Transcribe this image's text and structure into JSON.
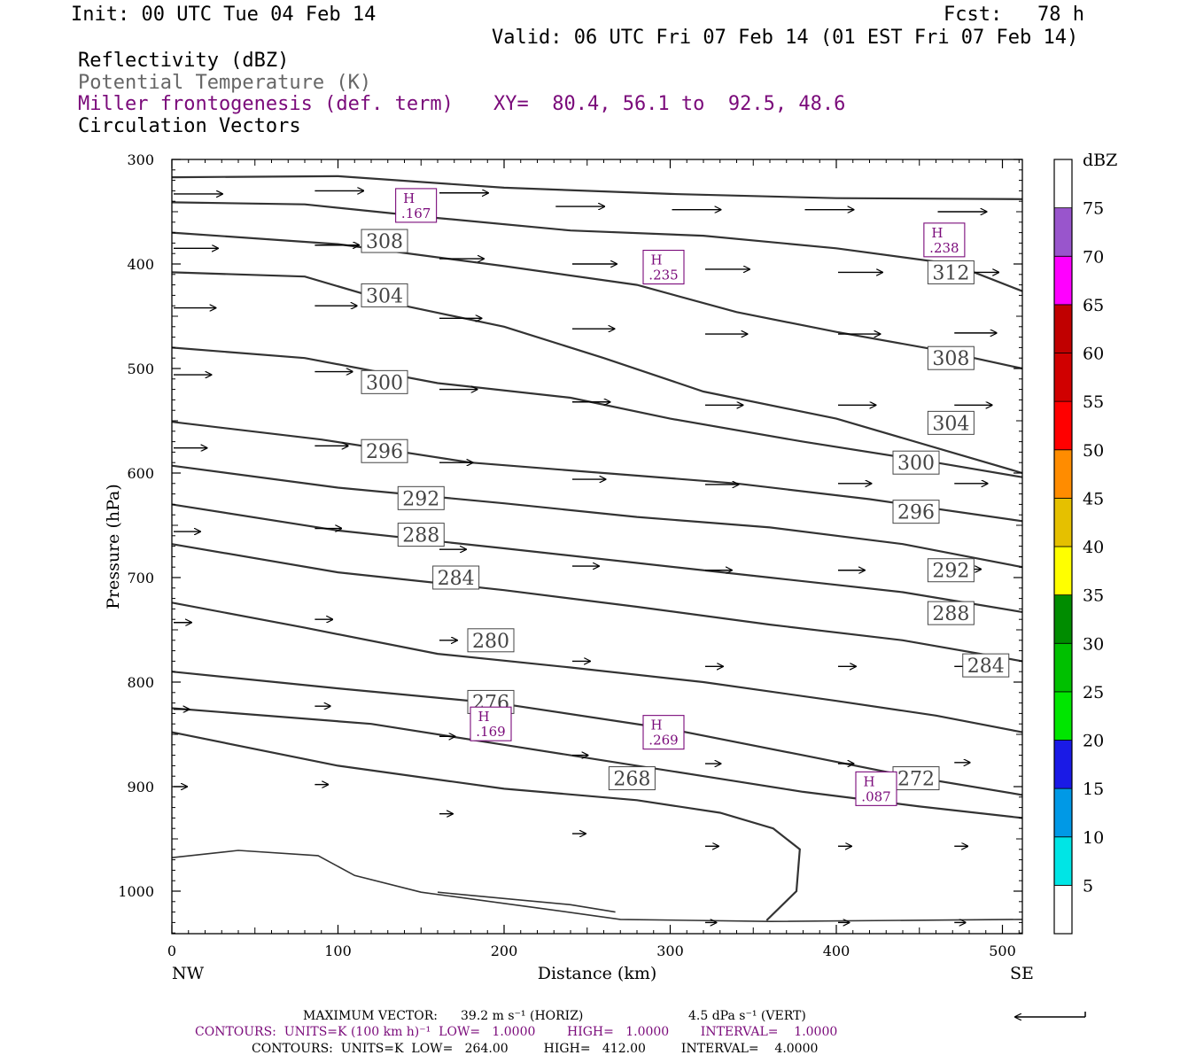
{
  "header": {
    "init": "Init: 00 UTC Tue 04 Feb 14",
    "fcst": "Fcst:   78 h",
    "valid": "Valid: 06 UTC Fri 07 Feb 14 (01 EST Fri 07 Feb 14)",
    "field_reflectivity": "Reflectivity (dBZ)",
    "field_theta": "Potential Temperature (K)",
    "field_miller": "Miller frontogenesis (def. term)",
    "field_vectors": "Circulation Vectors",
    "xy": "XY=  80.4, 56.1 to  92.5, 48.6"
  },
  "footer": {
    "max_vector_label": "MAXIMUM VECTOR:",
    "max_vector_horiz": "39.2 m s⁻¹ (HORIZ)",
    "max_vector_vert": "4.5 dPa s⁻¹ (VERT)",
    "contours_miller": "CONTOURS:  UNITS=K (100 km h)⁻¹  LOW=   1.0000        HIGH=   1.0000        INTERVAL=    1.0000",
    "contours_theta": "CONTOURS:  UNITS=K  LOW=   264.00         HIGH=   412.00         INTERVAL=    4.0000"
  },
  "colors": {
    "contour": "#333333",
    "miller": "#7a0a7a",
    "frame": "#000000"
  },
  "colorbar": {
    "unit": "dBZ",
    "ticks": [
      "5",
      "10",
      "15",
      "20",
      "25",
      "30",
      "35",
      "40",
      "45",
      "50",
      "55",
      "60",
      "65",
      "70",
      "75"
    ],
    "colors": [
      "#00e5e5",
      "#0099e6",
      "#1a1ae6",
      "#00e600",
      "#00c000",
      "#008c00",
      "#ffff00",
      "#e5c000",
      "#ff8c00",
      "#ff0000",
      "#d00000",
      "#c00000",
      "#ff00ff",
      "#9955cc",
      "#ffffff"
    ]
  },
  "chart_data": {
    "type": "cross-section",
    "xlabel": "Distance (km)",
    "ylabel": "Pressure (hPa)",
    "x_ticks": [
      "0",
      "100",
      "200",
      "300",
      "400",
      "500"
    ],
    "y_ticks": [
      "300",
      "400",
      "500",
      "600",
      "700",
      "800",
      "900",
      "1000"
    ],
    "xlim": [
      0,
      512
    ],
    "ylim": [
      1040,
      300
    ],
    "x_end_labels": {
      "left": "NW",
      "right": "SE"
    },
    "theta_contours": [
      {
        "label": "308",
        "points": [
          [
            0,
            317
          ],
          [
            100,
            316
          ],
          [
            200,
            327
          ],
          [
            300,
            333
          ],
          [
            400,
            337
          ],
          [
            512,
            338
          ]
        ]
      },
      {
        "label": "",
        "points": [
          [
            0,
            341
          ],
          [
            80,
            343
          ],
          [
            160,
            356
          ],
          [
            240,
            368
          ],
          [
            320,
            373
          ],
          [
            400,
            385
          ],
          [
            470,
            400
          ],
          [
            512,
            426
          ]
        ]
      },
      {
        "label": "",
        "points": [
          [
            0,
            370
          ],
          [
            100,
            381
          ],
          [
            200,
            402
          ],
          [
            280,
            420
          ],
          [
            340,
            446
          ],
          [
            400,
            465
          ],
          [
            460,
            482
          ],
          [
            512,
            500
          ]
        ]
      },
      {
        "label": "",
        "points": [
          [
            0,
            408
          ],
          [
            80,
            412
          ],
          [
            140,
            440
          ],
          [
            200,
            460
          ],
          [
            260,
            490
          ],
          [
            320,
            522
          ],
          [
            400,
            548
          ],
          [
            512,
            600
          ]
        ]
      },
      {
        "label": "",
        "points": [
          [
            0,
            480
          ],
          [
            80,
            490
          ],
          [
            160,
            514
          ],
          [
            240,
            528
          ],
          [
            300,
            548
          ],
          [
            380,
            570
          ],
          [
            460,
            590
          ],
          [
            512,
            604
          ]
        ]
      },
      {
        "label": "",
        "points": [
          [
            0,
            551
          ],
          [
            90,
            568
          ],
          [
            180,
            590
          ],
          [
            260,
            600
          ],
          [
            340,
            610
          ],
          [
            420,
            625
          ],
          [
            512,
            646
          ]
        ]
      },
      {
        "label": "",
        "points": [
          [
            0,
            593
          ],
          [
            100,
            614
          ],
          [
            200,
            629
          ],
          [
            280,
            642
          ],
          [
            360,
            652
          ],
          [
            440,
            668
          ],
          [
            512,
            690
          ]
        ]
      },
      {
        "label": "",
        "points": [
          [
            0,
            630
          ],
          [
            100,
            655
          ],
          [
            200,
            672
          ],
          [
            280,
            686
          ],
          [
            360,
            700
          ],
          [
            440,
            714
          ],
          [
            512,
            733
          ]
        ]
      },
      {
        "label": "",
        "points": [
          [
            0,
            668
          ],
          [
            100,
            695
          ],
          [
            200,
            712
          ],
          [
            280,
            728
          ],
          [
            360,
            745
          ],
          [
            440,
            760
          ],
          [
            512,
            780
          ]
        ]
      },
      {
        "label": "",
        "points": [
          [
            0,
            724
          ],
          [
            80,
            748
          ],
          [
            160,
            773
          ],
          [
            240,
            786
          ],
          [
            320,
            800
          ],
          [
            400,
            818
          ],
          [
            460,
            832
          ],
          [
            512,
            848
          ]
        ]
      },
      {
        "label": "",
        "points": [
          [
            0,
            790
          ],
          [
            100,
            806
          ],
          [
            200,
            821
          ],
          [
            300,
            845
          ],
          [
            380,
            870
          ],
          [
            440,
            889
          ],
          [
            512,
            908
          ]
        ]
      },
      {
        "label": "",
        "points": [
          [
            0,
            825
          ],
          [
            120,
            840
          ],
          [
            200,
            860
          ],
          [
            280,
            880
          ],
          [
            340,
            895
          ],
          [
            380,
            905
          ],
          [
            450,
            919
          ],
          [
            512,
            930
          ]
        ]
      },
      {
        "label": "",
        "points": [
          [
            0,
            848
          ],
          [
            100,
            880
          ],
          [
            200,
            902
          ],
          [
            280,
            913
          ],
          [
            330,
            925
          ],
          [
            362,
            940
          ],
          [
            378,
            960
          ],
          [
            376,
            1000
          ],
          [
            358,
            1028
          ]
        ]
      }
    ],
    "theta_labels": [
      {
        "text": "308",
        "x": 128,
        "p": 378
      },
      {
        "text": "304",
        "x": 128,
        "p": 430
      },
      {
        "text": "300",
        "x": 128,
        "p": 513
      },
      {
        "text": "296",
        "x": 128,
        "p": 579
      },
      {
        "text": "292",
        "x": 150,
        "p": 624
      },
      {
        "text": "288",
        "x": 150,
        "p": 659
      },
      {
        "text": "284",
        "x": 171,
        "p": 700
      },
      {
        "text": "280",
        "x": 192,
        "p": 760
      },
      {
        "text": "276",
        "x": 192,
        "p": 819
      },
      {
        "text": "268",
        "x": 277,
        "p": 892
      },
      {
        "text": "272",
        "x": 448,
        "p": 892
      },
      {
        "text": "312",
        "x": 469,
        "p": 408
      },
      {
        "text": "308",
        "x": 469,
        "p": 490
      },
      {
        "text": "304",
        "x": 469,
        "p": 552
      },
      {
        "text": "300",
        "x": 448,
        "p": 590
      },
      {
        "text": "296",
        "x": 448,
        "p": 637
      },
      {
        "text": "292",
        "x": 469,
        "p": 693
      },
      {
        "text": "288",
        "x": 469,
        "p": 734
      },
      {
        "text": "284",
        "x": 490,
        "p": 784
      }
    ],
    "miller_highs": [
      {
        "label": "H",
        "value": ".167",
        "x": 147,
        "p": 344
      },
      {
        "label": "H",
        "value": ".235",
        "x": 296,
        "p": 403
      },
      {
        "label": "H",
        "value": ".238",
        "x": 465,
        "p": 377
      },
      {
        "label": "H",
        "value": ".169",
        "x": 192,
        "p": 840
      },
      {
        "label": "H",
        "value": ".269",
        "x": 296,
        "p": 848
      },
      {
        "label": "H",
        "value": ".087",
        "x": 424,
        "p": 902
      }
    ],
    "terrain_lines": [
      [
        [
          0,
          968
        ],
        [
          40,
          961
        ],
        [
          88,
          966
        ],
        [
          110,
          985
        ],
        [
          150,
          1001
        ],
        [
          220,
          1016
        ],
        [
          270,
          1027
        ],
        [
          360,
          1029
        ],
        [
          512,
          1027
        ]
      ],
      [
        [
          160,
          1001
        ],
        [
          200,
          1007
        ],
        [
          240,
          1013
        ],
        [
          267,
          1020
        ]
      ]
    ],
    "vectors": [
      {
        "x": 0,
        "p": 333,
        "u": 44,
        "w": 0
      },
      {
        "x": 85,
        "p": 330,
        "u": 44,
        "w": 0
      },
      {
        "x": 160,
        "p": 332,
        "u": 44,
        "w": 0
      },
      {
        "x": 230,
        "p": 345,
        "u": 44,
        "w": 0
      },
      {
        "x": 300,
        "p": 348,
        "u": 44,
        "w": 0
      },
      {
        "x": 380,
        "p": 348,
        "u": 44,
        "w": 0
      },
      {
        "x": 460,
        "p": 350,
        "u": 44,
        "w": 0
      },
      {
        "x": 0,
        "p": 385,
        "u": 40,
        "w": 0
      },
      {
        "x": 85,
        "p": 382,
        "u": 40,
        "w": 0
      },
      {
        "x": 160,
        "p": 395,
        "u": 40,
        "w": 0
      },
      {
        "x": 240,
        "p": 400,
        "u": 40,
        "w": 0
      },
      {
        "x": 320,
        "p": 405,
        "u": 40,
        "w": 0
      },
      {
        "x": 400,
        "p": 408,
        "u": 40,
        "w": 0
      },
      {
        "x": 470,
        "p": 408,
        "u": 40,
        "w": 0
      },
      {
        "x": 0,
        "p": 442,
        "u": 38,
        "w": 0
      },
      {
        "x": 85,
        "p": 440,
        "u": 38,
        "w": 0
      },
      {
        "x": 160,
        "p": 452,
        "u": 38,
        "w": 0
      },
      {
        "x": 240,
        "p": 462,
        "u": 38,
        "w": 0
      },
      {
        "x": 320,
        "p": 467,
        "u": 38,
        "w": 0
      },
      {
        "x": 400,
        "p": 467,
        "u": 38,
        "w": 0
      },
      {
        "x": 470,
        "p": 466,
        "u": 38,
        "w": 0
      },
      {
        "x": 0,
        "p": 506,
        "u": 34,
        "w": 0
      },
      {
        "x": 85,
        "p": 503,
        "u": 34,
        "w": 0
      },
      {
        "x": 160,
        "p": 520,
        "u": 34,
        "w": 0
      },
      {
        "x": 240,
        "p": 532,
        "u": 34,
        "w": 0
      },
      {
        "x": 320,
        "p": 535,
        "u": 34,
        "w": 0
      },
      {
        "x": 400,
        "p": 535,
        "u": 34,
        "w": 0
      },
      {
        "x": 470,
        "p": 535,
        "u": 34,
        "w": 0
      },
      {
        "x": 0,
        "p": 576,
        "u": 30,
        "w": 0
      },
      {
        "x": 85,
        "p": 574,
        "u": 30,
        "w": 0
      },
      {
        "x": 160,
        "p": 590,
        "u": 30,
        "w": 0
      },
      {
        "x": 240,
        "p": 606,
        "u": 30,
        "w": 0
      },
      {
        "x": 320,
        "p": 611,
        "u": 30,
        "w": 0
      },
      {
        "x": 400,
        "p": 610,
        "u": 30,
        "w": 0
      },
      {
        "x": 470,
        "p": 610,
        "u": 30,
        "w": 0
      },
      {
        "x": 0,
        "p": 656,
        "u": 24,
        "w": 0
      },
      {
        "x": 85,
        "p": 653,
        "u": 24,
        "w": 0
      },
      {
        "x": 160,
        "p": 673,
        "u": 24,
        "w": 0
      },
      {
        "x": 240,
        "p": 689,
        "u": 24,
        "w": 0
      },
      {
        "x": 320,
        "p": 693,
        "u": 24,
        "w": 0
      },
      {
        "x": 400,
        "p": 693,
        "u": 24,
        "w": 0
      },
      {
        "x": 470,
        "p": 692,
        "u": 24,
        "w": 0
      },
      {
        "x": 0,
        "p": 743,
        "u": 16,
        "w": 0
      },
      {
        "x": 85,
        "p": 740,
        "u": 16,
        "w": 0
      },
      {
        "x": 160,
        "p": 760,
        "u": 16,
        "w": 0
      },
      {
        "x": 240,
        "p": 780,
        "u": 16,
        "w": 0
      },
      {
        "x": 320,
        "p": 785,
        "u": 16,
        "w": 0
      },
      {
        "x": 400,
        "p": 785,
        "u": 16,
        "w": 0
      },
      {
        "x": 470,
        "p": 785,
        "u": 16,
        "w": 0
      },
      {
        "x": 0,
        "p": 826,
        "u": 14,
        "w": 0
      },
      {
        "x": 85,
        "p": 823,
        "u": 14,
        "w": 0
      },
      {
        "x": 160,
        "p": 852,
        "u": 14,
        "w": 0
      },
      {
        "x": 240,
        "p": 870,
        "u": 14,
        "w": 0
      },
      {
        "x": 320,
        "p": 878,
        "u": 14,
        "w": 0
      },
      {
        "x": 400,
        "p": 878,
        "u": 14,
        "w": 0
      },
      {
        "x": 470,
        "p": 877,
        "u": 14,
        "w": 0
      },
      {
        "x": 0,
        "p": 900,
        "u": 12,
        "w": 0
      },
      {
        "x": 85,
        "p": 898,
        "u": 12,
        "w": 0
      },
      {
        "x": 160,
        "p": 926,
        "u": 12,
        "w": 0
      },
      {
        "x": 240,
        "p": 945,
        "u": 12,
        "w": 0
      },
      {
        "x": 320,
        "p": 957,
        "u": 12,
        "w": 0
      },
      {
        "x": 400,
        "p": 957,
        "u": 12,
        "w": 0
      },
      {
        "x": 470,
        "p": 957,
        "u": 12,
        "w": 0
      },
      {
        "x": 320,
        "p": 1030,
        "u": 10,
        "w": 0
      },
      {
        "x": 400,
        "p": 1030,
        "u": 10,
        "w": 0
      },
      {
        "x": 470,
        "p": 1030,
        "u": 10,
        "w": 0
      }
    ]
  }
}
